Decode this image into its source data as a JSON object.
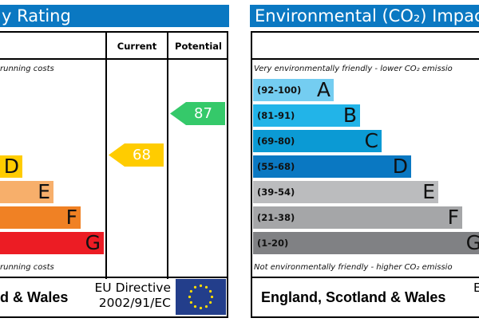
{
  "chart_data": [
    {
      "type": "bar",
      "title": "y Rating",
      "columns": [
        "Current",
        "Potential"
      ],
      "top_note": "running costs",
      "bottom_note": "running costs",
      "bands": [
        {
          "letter": "D",
          "color": "#ffcc00"
        },
        {
          "letter": "E",
          "color": "#f7af6b"
        },
        {
          "letter": "F",
          "color": "#f08124"
        },
        {
          "letter": "G",
          "color": "#ec1c24"
        }
      ],
      "current": {
        "value": "68",
        "color": "#ffcc00"
      },
      "potential": {
        "value": "87",
        "color": "#35c96a"
      },
      "footer": {
        "region": "d & Wales",
        "directive_line1": "EU Directive",
        "directive_line2": "2002/91/EC"
      }
    },
    {
      "type": "bar",
      "title": "Environmental (CO₂) Impac",
      "top_note": "Very environmentally friendly - lower CO₂ emissio",
      "bottom_note": "Not environmentally friendly - higher CO₂ emissio",
      "bands": [
        {
          "range": "(92-100)",
          "letter": "A",
          "color": "#74cdf1"
        },
        {
          "range": "(81-91)",
          "letter": "B",
          "color": "#22b4e8"
        },
        {
          "range": "(69-80)",
          "letter": "C",
          "color": "#0b9ad4"
        },
        {
          "range": "(55-68)",
          "letter": "D",
          "color": "#0a78c2"
        },
        {
          "range": "(39-54)",
          "letter": "E",
          "color": "#bbbcbe"
        },
        {
          "range": "(21-38)",
          "letter": "F",
          "color": "#a5a6a8"
        },
        {
          "range": "(1-20)",
          "letter": "G",
          "color": "#808184"
        }
      ],
      "footer": {
        "region": "England, Scotland & Wales",
        "directive_partial": "E"
      }
    }
  ]
}
